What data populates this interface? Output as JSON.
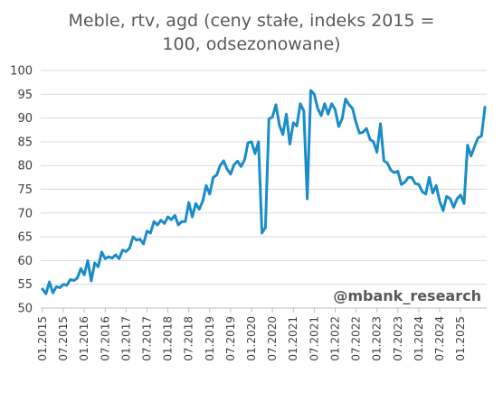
{
  "title_line1": "Meble, rtv, agd (ceny stałe, indeks 2015 =",
  "title_line2": "100, odsezonowane)",
  "watermark": "@mbank_research",
  "colors": {
    "line": "#1a8cc8",
    "grid": "#d9d9d9",
    "axis": "#bfbfbf",
    "text": "#404040"
  },
  "chart_data": {
    "type": "line",
    "title": "Meble, rtv, agd (ceny stałe, indeks 2015 = 100, odsezonowane)",
    "xlabel": "",
    "ylabel": "",
    "ylim": [
      50,
      100
    ],
    "yticks": [
      50,
      55,
      60,
      65,
      70,
      75,
      80,
      85,
      90,
      95,
      100
    ],
    "xtick_labels": [
      "01.2015",
      "07.2015",
      "01.2016",
      "07.2016",
      "01.2017",
      "07.2017",
      "01.2018",
      "07.2018",
      "01.2019",
      "07.2019",
      "01.2020",
      "07.2020",
      "01.2021",
      "07.2021",
      "01.2022",
      "07.2022",
      "01.2023",
      "07.2023",
      "01.2024",
      "07.2024",
      "01.2025"
    ],
    "grid": "horizontal",
    "x_start": "2015-01",
    "x_frequency": "monthly",
    "series": [
      {
        "values": [
          54,
          53,
          55.5,
          53.2,
          54.5,
          54.3,
          55,
          54.8,
          56,
          55.8,
          56.3,
          58.3,
          57,
          60,
          55.7,
          59.5,
          58.7,
          61.8,
          60.4,
          60.8,
          60.5,
          61.2,
          60.4,
          62.2,
          61.9,
          62.6,
          65,
          64.3,
          64.5,
          63.5,
          66.2,
          65.8,
          68.2,
          67.5,
          68.5,
          67.8,
          69.2,
          68.6,
          69.5,
          67.5,
          68.2,
          68.2,
          72.2,
          69.2,
          72,
          70.8,
          72.5,
          75.8,
          74,
          77.5,
          78,
          80,
          81,
          79.2,
          78.2,
          80.2,
          80.9,
          79.8,
          81.2,
          84.8,
          85,
          82.5,
          85,
          65.8,
          67,
          89.8,
          90.2,
          92.8,
          88.5,
          86.5,
          90.8,
          84.5,
          89,
          88.3,
          93,
          91.5,
          73,
          95.8,
          95,
          92,
          90.5,
          93,
          90.8,
          93,
          91.8,
          88.2,
          89.8,
          94,
          92.8,
          92,
          89,
          86.8,
          87,
          87.8,
          85.5,
          85,
          82.8,
          88.8,
          81,
          80.5,
          79,
          78.5,
          78.8,
          76,
          76.5,
          77.5,
          77.5,
          76.2,
          76,
          74.5,
          74,
          77.5,
          74.2,
          75.8,
          72.5,
          70.5,
          73.5,
          73,
          71.2,
          73,
          73.8,
          72,
          84.3,
          82,
          84,
          85.8,
          86.2,
          92.3
        ]
      }
    ]
  }
}
